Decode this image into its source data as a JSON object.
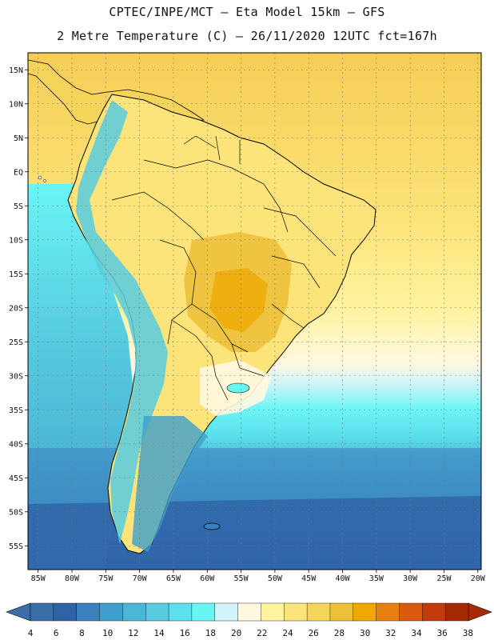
{
  "title_line1": "CPTEC/INPE/MCT –  Eta Model 15km – GFS",
  "title_line2": "2 Metre Temperature (C) – 26/11/2020 12UTC fct=167h",
  "lat_labels": [
    "15N",
    "10N",
    "5N",
    "EQ",
    "5S",
    "10S",
    "15S",
    "20S",
    "25S",
    "30S",
    "35S",
    "40S",
    "45S",
    "50S",
    "55S"
  ],
  "lat_values": [
    15,
    10,
    5,
    0,
    -5,
    -10,
    -15,
    -20,
    -25,
    -30,
    -35,
    -40,
    -45,
    -50,
    -55
  ],
  "lon_labels": [
    "85W",
    "80W",
    "75W",
    "70W",
    "65W",
    "60W",
    "55W",
    "50W",
    "45W",
    "40W",
    "35W",
    "30W",
    "25W",
    "20W"
  ],
  "lon_values": [
    -85,
    -80,
    -75,
    -70,
    -65,
    -60,
    -55,
    -50,
    -45,
    -40,
    -35,
    -30,
    -25,
    -20
  ],
  "colorbar": {
    "labels": [
      "4",
      "6",
      "8",
      "10",
      "12",
      "14",
      "16",
      "18",
      "20",
      "22",
      "24",
      "26",
      "28",
      "30",
      "32",
      "34",
      "36",
      "38"
    ],
    "colors": [
      "#3a6ea8",
      "#2f63a6",
      "#3b7fbf",
      "#3f9fcc",
      "#4cb6d6",
      "#57cbdf",
      "#5ce0ec",
      "#6af5f5",
      "#d0f4fa",
      "#fff8e0",
      "#fff3a0",
      "#fde47a",
      "#f5d45a",
      "#edc03a",
      "#f0a800",
      "#e88010",
      "#da5a10",
      "#c43a0a",
      "#a82a05"
    ],
    "low_color": "#3a6ea8",
    "high_color": "#a82a05"
  }
}
